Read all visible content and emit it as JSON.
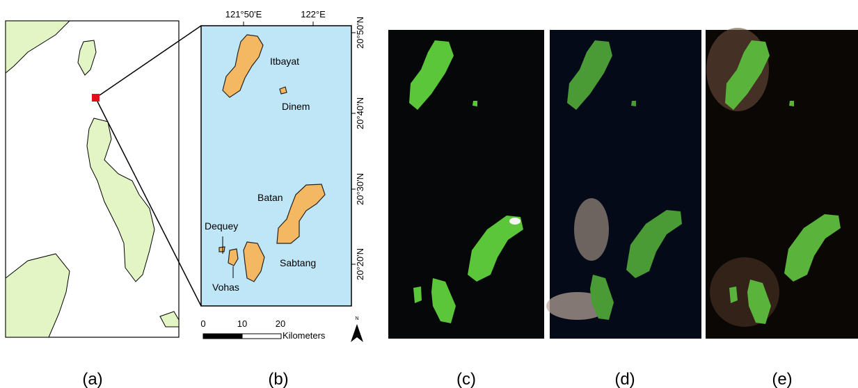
{
  "panels": [
    "(a)",
    "(b)",
    "(c)",
    "(d)",
    "(e)"
  ],
  "map_b": {
    "x_ticks": [
      "121°50'E",
      "122°E"
    ],
    "y_ticks": [
      "20°50'N",
      "20°40'N",
      "20°30'N",
      "20°20'N"
    ],
    "islands": [
      "Itbayat",
      "Dinem",
      "Batan",
      "Dequey",
      "Sabtang",
      "Vohas"
    ],
    "scale": {
      "ticks": [
        0,
        10,
        20
      ],
      "unit": "Kilometers"
    },
    "north": "N"
  }
}
